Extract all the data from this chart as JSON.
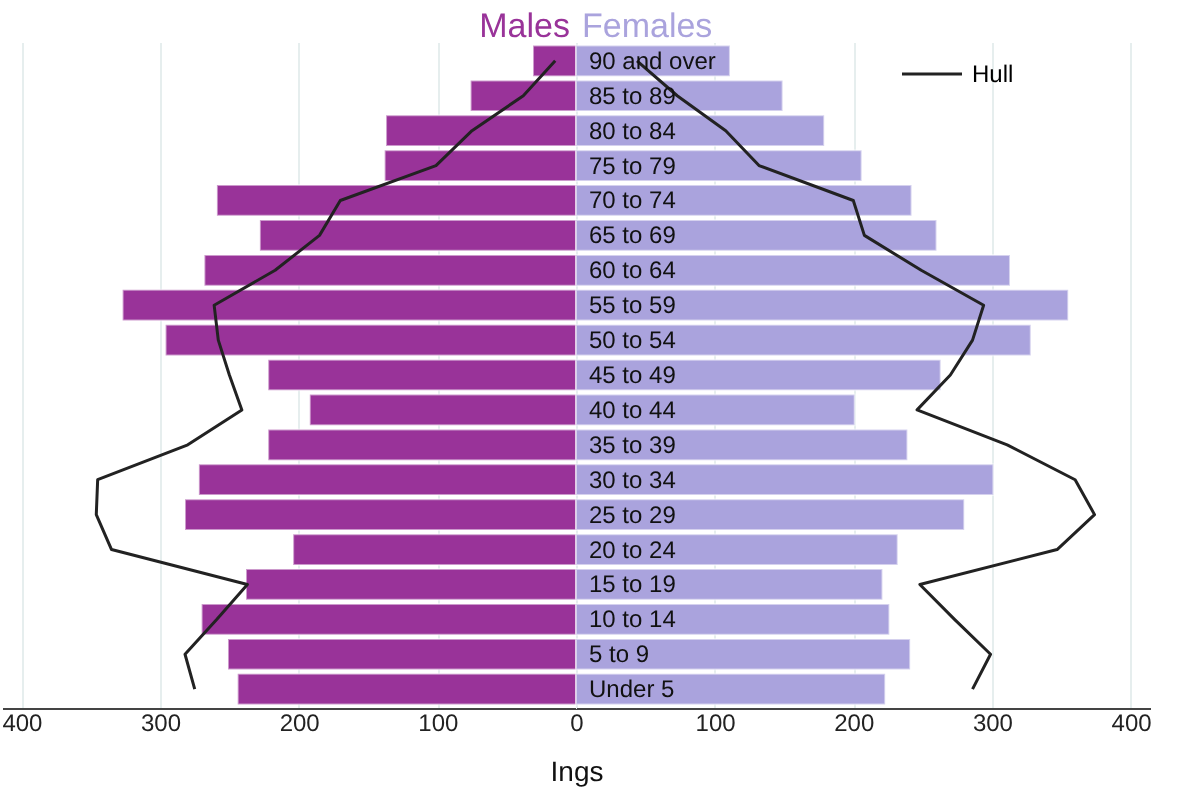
{
  "chart_data": [
    {
      "type": "bar",
      "orientation": "horizontal",
      "tick_labels": "x",
      "categories": [
        null,
        null,
        null,
        null,
        null,
        null,
        null,
        null,
        null,
        null,
        null,
        null,
        null,
        null,
        null,
        null,
        null,
        null,
        null
      ],
      "series": [
        {
          "name": "Males",
          "color": "#993399",
          "values": [
            31,
            76,
            137,
            138,
            259,
            228,
            268,
            327,
            296,
            222,
            192,
            222,
            272,
            282,
            204,
            238,
            270,
            251,
            244
          ]
        },
        {
          "type": "line",
          "color": "#222222",
          "values": [
            15,
            38,
            75,
            101,
            170,
            185,
            217,
            261,
            258,
            250,
            241,
            280,
            345,
            346,
            335,
            237,
            259,
            282,
            275
          ]
        }
      ],
      "xlim": [
        414,
        0
      ],
      "xticks": [
        400,
        300,
        200,
        100
      ],
      "grid": "x"
    },
    {
      "type": "bar",
      "orientation": "horizontal",
      "xlabel": "Ings",
      "categories": [
        "90 and over",
        "85 to 89",
        "80 to 84",
        "75 to 79",
        "70 to 74",
        "65 to 69",
        "60 to 64",
        "55 to 59",
        "50 to 54",
        "45 to 49",
        "40 to 44",
        "35 to 39",
        "30 to 34",
        "25 to 29",
        "20 to 24",
        "15 to 19",
        "10 to 14",
        "5 to 9",
        "Under 5"
      ],
      "series": [
        {
          "name": "Females",
          "color": "#aaa3dd",
          "values": [
            111,
            149,
            179,
            206,
            242,
            260,
            313,
            355,
            328,
            263,
            201,
            239,
            301,
            280,
            232,
            221,
            226,
            241,
            223
          ]
        },
        {
          "name": "Hull",
          "type": "line",
          "color": "#222222",
          "values": [
            44,
            73,
            108,
            132,
            200,
            208,
            249,
            294,
            286,
            270,
            246,
            311,
            360,
            374,
            347,
            248,
            273,
            299,
            286
          ]
        }
      ],
      "xlim": [
        0,
        414
      ],
      "xticks": [
        0,
        100,
        200,
        300,
        400
      ],
      "grid": "x",
      "legend": "top right"
    }
  ]
}
